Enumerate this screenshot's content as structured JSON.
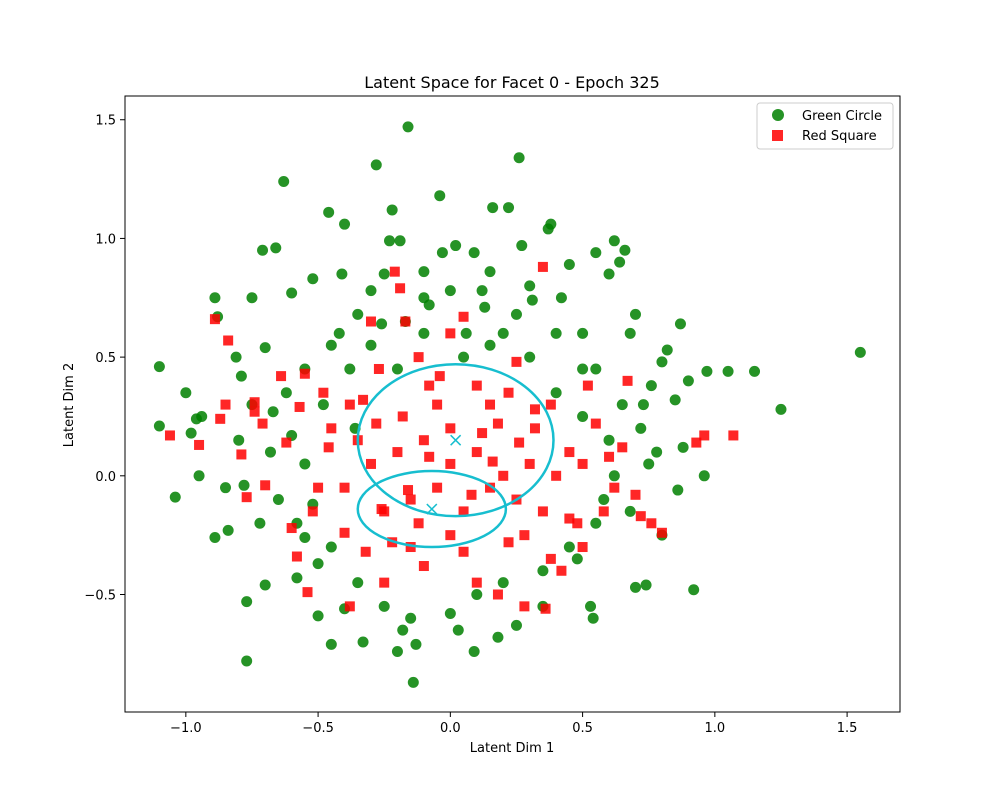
{
  "chart_data": {
    "type": "scatter",
    "title": "Latent Space for Facet 0 - Epoch 325",
    "xlabel": "Latent Dim 1",
    "ylabel": "Latent Dim 2",
    "xlim": [
      -1.23,
      1.7
    ],
    "ylim": [
      -0.995,
      1.6
    ],
    "xticks": [
      -1.0,
      -0.5,
      0.0,
      0.5,
      1.0,
      1.5
    ],
    "xtick_labels": [
      "−1.0",
      "−0.5",
      "0.0",
      "0.5",
      "1.0",
      "1.5"
    ],
    "yticks": [
      -0.5,
      0.0,
      0.5,
      1.0,
      1.5
    ],
    "ytick_labels": [
      "−0.5",
      "0.0",
      "0.5",
      "1.0",
      "1.5"
    ],
    "grid": false,
    "legend_position": "top-right",
    "series": [
      {
        "name": "Green Circle",
        "marker": "circle",
        "color": "#008000",
        "points": [
          [
            -1.1,
            0.46
          ],
          [
            -1.1,
            0.21
          ],
          [
            -1.04,
            -0.09
          ],
          [
            -1.0,
            0.35
          ],
          [
            -0.98,
            0.18
          ],
          [
            -0.96,
            0.24
          ],
          [
            -0.95,
            0.0
          ],
          [
            -0.94,
            0.25
          ],
          [
            -0.89,
            0.75
          ],
          [
            -0.88,
            0.67
          ],
          [
            -0.89,
            -0.26
          ],
          [
            -0.84,
            -0.23
          ],
          [
            -0.81,
            0.5
          ],
          [
            -0.79,
            0.42
          ],
          [
            -0.78,
            -0.04
          ],
          [
            -0.77,
            -0.53
          ],
          [
            -0.77,
            -0.78
          ],
          [
            -0.75,
            0.75
          ],
          [
            -0.71,
            0.95
          ],
          [
            -0.7,
            0.54
          ],
          [
            -0.7,
            -0.46
          ],
          [
            -0.67,
            0.27
          ],
          [
            -0.66,
            0.96
          ],
          [
            -0.63,
            1.24
          ],
          [
            -0.6,
            0.77
          ],
          [
            -0.58,
            -0.43
          ],
          [
            -0.55,
            -0.26
          ],
          [
            -0.52,
            0.83
          ],
          [
            -0.5,
            -0.37
          ],
          [
            -0.5,
            -0.59
          ],
          [
            -0.46,
            1.11
          ],
          [
            -0.45,
            -0.71
          ],
          [
            -0.41,
            0.85
          ],
          [
            -0.4,
            1.06
          ],
          [
            -0.4,
            -0.56
          ],
          [
            -0.38,
            0.45
          ],
          [
            -0.36,
            0.2
          ],
          [
            -0.33,
            -0.7
          ],
          [
            -0.28,
            1.31
          ],
          [
            -0.26,
            0.64
          ],
          [
            -0.23,
            0.99
          ],
          [
            -0.22,
            1.12
          ],
          [
            -0.2,
            -0.74
          ],
          [
            -0.19,
            0.99
          ],
          [
            -0.17,
            0.65
          ],
          [
            -0.16,
            1.47
          ],
          [
            -0.14,
            -0.87
          ],
          [
            -0.13,
            -0.71
          ],
          [
            -0.1,
            0.86
          ],
          [
            -0.08,
            0.72
          ],
          [
            -0.04,
            1.18
          ],
          [
            -0.03,
            0.94
          ],
          [
            0.0,
            0.78
          ],
          [
            0.02,
            0.97
          ],
          [
            0.03,
            -0.65
          ],
          [
            0.06,
            0.6
          ],
          [
            0.09,
            0.94
          ],
          [
            0.09,
            -0.74
          ],
          [
            0.13,
            0.71
          ],
          [
            0.15,
            0.86
          ],
          [
            0.16,
            1.13
          ],
          [
            0.2,
            0.6
          ],
          [
            0.22,
            1.13
          ],
          [
            0.25,
            -0.63
          ],
          [
            0.26,
            1.34
          ],
          [
            0.27,
            0.97
          ],
          [
            0.31,
            0.74
          ],
          [
            0.35,
            -0.55
          ],
          [
            0.37,
            1.04
          ],
          [
            0.38,
            1.06
          ],
          [
            0.42,
            0.75
          ],
          [
            0.45,
            0.89
          ],
          [
            0.5,
            0.6
          ],
          [
            0.53,
            -0.55
          ],
          [
            0.54,
            -0.6
          ],
          [
            0.55,
            0.94
          ],
          [
            0.6,
            0.85
          ],
          [
            0.62,
            0.99
          ],
          [
            0.64,
            0.9
          ],
          [
            0.66,
            0.95
          ],
          [
            0.68,
            0.6
          ],
          [
            0.7,
            0.68
          ],
          [
            0.7,
            -0.47
          ],
          [
            0.73,
            0.3
          ],
          [
            0.74,
            -0.46
          ],
          [
            0.76,
            0.38
          ],
          [
            0.78,
            0.1
          ],
          [
            0.8,
            0.48
          ],
          [
            0.82,
            0.53
          ],
          [
            0.85,
            0.32
          ],
          [
            0.86,
            -0.06
          ],
          [
            0.87,
            0.64
          ],
          [
            0.88,
            0.12
          ],
          [
            0.9,
            0.4
          ],
          [
            0.92,
            -0.48
          ],
          [
            0.96,
            0.0
          ],
          [
            0.97,
            0.44
          ],
          [
            1.05,
            0.44
          ],
          [
            1.15,
            0.44
          ],
          [
            1.25,
            0.28
          ],
          [
            1.55,
            0.52
          ],
          [
            -0.6,
            0.17
          ],
          [
            -0.55,
            0.05
          ],
          [
            -0.52,
            -0.12
          ],
          [
            -0.48,
            0.3
          ],
          [
            -0.45,
            -0.3
          ],
          [
            -0.42,
            0.6
          ],
          [
            -0.35,
            -0.45
          ],
          [
            -0.3,
            0.55
          ],
          [
            -0.25,
            -0.55
          ],
          [
            -0.2,
            0.45
          ],
          [
            -0.15,
            -0.6
          ],
          [
            -0.1,
            0.6
          ],
          [
            0.0,
            -0.58
          ],
          [
            0.05,
            0.5
          ],
          [
            0.1,
            -0.5
          ],
          [
            0.15,
            0.55
          ],
          [
            0.2,
            -0.45
          ],
          [
            0.3,
            0.5
          ],
          [
            0.35,
            -0.4
          ],
          [
            0.4,
            0.35
          ],
          [
            0.45,
            -0.3
          ],
          [
            0.5,
            0.25
          ],
          [
            0.55,
            -0.2
          ],
          [
            0.6,
            0.15
          ],
          [
            0.62,
            0.0
          ],
          [
            0.58,
            -0.1
          ],
          [
            0.5,
            0.45
          ],
          [
            0.48,
            -0.35
          ],
          [
            -0.65,
            -0.1
          ],
          [
            -0.62,
            0.35
          ],
          [
            -0.58,
            -0.2
          ],
          [
            -0.55,
            0.45
          ],
          [
            -0.68,
            0.1
          ],
          [
            0.65,
            0.3
          ],
          [
            0.68,
            -0.15
          ],
          [
            0.72,
            0.2
          ],
          [
            0.75,
            0.05
          ],
          [
            0.8,
            -0.25
          ],
          [
            -0.72,
            -0.2
          ],
          [
            -0.8,
            0.15
          ],
          [
            -0.85,
            -0.05
          ],
          [
            -0.75,
            0.3
          ],
          [
            0.3,
            0.8
          ],
          [
            -0.3,
            0.78
          ],
          [
            0.18,
            -0.68
          ],
          [
            -0.18,
            -0.65
          ],
          [
            0.4,
            0.6
          ],
          [
            -0.45,
            0.55
          ],
          [
            0.55,
            0.45
          ],
          [
            -0.35,
            0.68
          ],
          [
            0.25,
            0.68
          ],
          [
            -0.1,
            0.75
          ],
          [
            0.12,
            0.78
          ],
          [
            -0.25,
            0.85
          ]
        ]
      },
      {
        "name": "Red Square",
        "marker": "square",
        "color": "#ff0000",
        "points": [
          [
            -1.06,
            0.17
          ],
          [
            -0.95,
            0.13
          ],
          [
            -0.89,
            0.66
          ],
          [
            -0.87,
            0.24
          ],
          [
            -0.84,
            0.57
          ],
          [
            -0.85,
            0.3
          ],
          [
            -0.79,
            0.09
          ],
          [
            -0.77,
            -0.09
          ],
          [
            -0.74,
            0.31
          ],
          [
            -0.74,
            0.27
          ],
          [
            -0.71,
            0.22
          ],
          [
            -0.7,
            -0.04
          ],
          [
            -0.64,
            0.42
          ],
          [
            -0.62,
            0.14
          ],
          [
            -0.6,
            -0.22
          ],
          [
            -0.58,
            -0.34
          ],
          [
            -0.57,
            0.29
          ],
          [
            -0.55,
            0.43
          ],
          [
            -0.54,
            -0.49
          ],
          [
            -0.52,
            -0.15
          ],
          [
            -0.48,
            0.35
          ],
          [
            -0.46,
            0.12
          ],
          [
            -0.4,
            -0.24
          ],
          [
            -0.38,
            -0.55
          ],
          [
            -0.33,
            0.32
          ],
          [
            -0.3,
            0.65
          ],
          [
            -0.27,
            0.45
          ],
          [
            -0.25,
            -0.45
          ],
          [
            -0.21,
            0.86
          ],
          [
            -0.19,
            0.79
          ],
          [
            -0.17,
            0.65
          ],
          [
            -0.15,
            -0.3
          ],
          [
            -0.12,
            0.5
          ],
          [
            -0.08,
            0.38
          ],
          [
            -0.04,
            0.42
          ],
          [
            0.0,
            0.6
          ],
          [
            0.05,
            0.67
          ],
          [
            0.1,
            -0.45
          ],
          [
            0.15,
            0.3
          ],
          [
            0.18,
            -0.5
          ],
          [
            0.22,
            0.35
          ],
          [
            0.25,
            0.48
          ],
          [
            0.28,
            -0.55
          ],
          [
            0.32,
            0.2
          ],
          [
            0.35,
            0.88
          ],
          [
            0.36,
            -0.56
          ],
          [
            0.38,
            0.3
          ],
          [
            0.42,
            -0.4
          ],
          [
            0.45,
            0.1
          ],
          [
            0.48,
            -0.2
          ],
          [
            0.5,
            -0.3
          ],
          [
            0.52,
            0.38
          ],
          [
            0.55,
            0.22
          ],
          [
            0.58,
            -0.15
          ],
          [
            0.6,
            0.08
          ],
          [
            0.62,
            -0.05
          ],
          [
            0.65,
            0.12
          ],
          [
            0.67,
            0.4
          ],
          [
            0.7,
            -0.08
          ],
          [
            0.72,
            -0.17
          ],
          [
            0.76,
            -0.2
          ],
          [
            0.8,
            -0.24
          ],
          [
            0.93,
            0.14
          ],
          [
            0.96,
            0.17
          ],
          [
            1.07,
            0.17
          ],
          [
            -0.2,
            0.1
          ],
          [
            -0.15,
            -0.1
          ],
          [
            -0.1,
            0.15
          ],
          [
            -0.05,
            -0.05
          ],
          [
            0.0,
            0.05
          ],
          [
            0.05,
            -0.15
          ],
          [
            0.1,
            0.1
          ],
          [
            0.15,
            -0.05
          ],
          [
            0.2,
            0.0
          ],
          [
            0.25,
            -0.1
          ],
          [
            -0.3,
            0.05
          ],
          [
            -0.25,
            -0.15
          ],
          [
            -0.35,
            0.15
          ],
          [
            0.3,
            0.05
          ],
          [
            0.35,
            -0.15
          ],
          [
            -0.18,
            0.25
          ],
          [
            0.18,
            0.22
          ],
          [
            -0.22,
            -0.28
          ],
          [
            0.22,
            -0.28
          ],
          [
            -0.05,
            0.3
          ],
          [
            0.05,
            -0.32
          ],
          [
            -0.4,
            -0.05
          ],
          [
            0.4,
            0.0
          ],
          [
            -0.1,
            -0.38
          ],
          [
            0.1,
            0.38
          ],
          [
            -0.28,
            0.22
          ],
          [
            0.28,
            -0.25
          ],
          [
            -0.12,
            -0.2
          ],
          [
            0.12,
            0.18
          ],
          [
            -0.32,
            -0.32
          ],
          [
            0.32,
            0.28
          ],
          [
            -0.45,
            0.2
          ],
          [
            0.45,
            -0.18
          ],
          [
            0.0,
            -0.25
          ],
          [
            0.0,
            0.2
          ],
          [
            -0.38,
            0.3
          ],
          [
            0.38,
            -0.35
          ],
          [
            -0.5,
            -0.05
          ],
          [
            0.5,
            0.05
          ],
          [
            -0.08,
            0.08
          ],
          [
            0.08,
            -0.08
          ],
          [
            0.16,
            0.06
          ],
          [
            -0.16,
            -0.06
          ],
          [
            0.26,
            0.14
          ],
          [
            -0.26,
            -0.14
          ]
        ]
      },
      {
        "name": "",
        "marker": "x",
        "color": "#17becf",
        "points": [
          [
            0.02,
            0.15
          ],
          [
            -0.07,
            -0.14
          ]
        ]
      }
    ],
    "ellipses": [
      {
        "center": [
          0.02,
          0.15
        ],
        "rx": 0.37,
        "ry": 0.32,
        "color": "#17becf"
      },
      {
        "center": [
          -0.07,
          -0.14
        ],
        "rx": 0.28,
        "ry": 0.16,
        "color": "#17becf"
      }
    ]
  }
}
